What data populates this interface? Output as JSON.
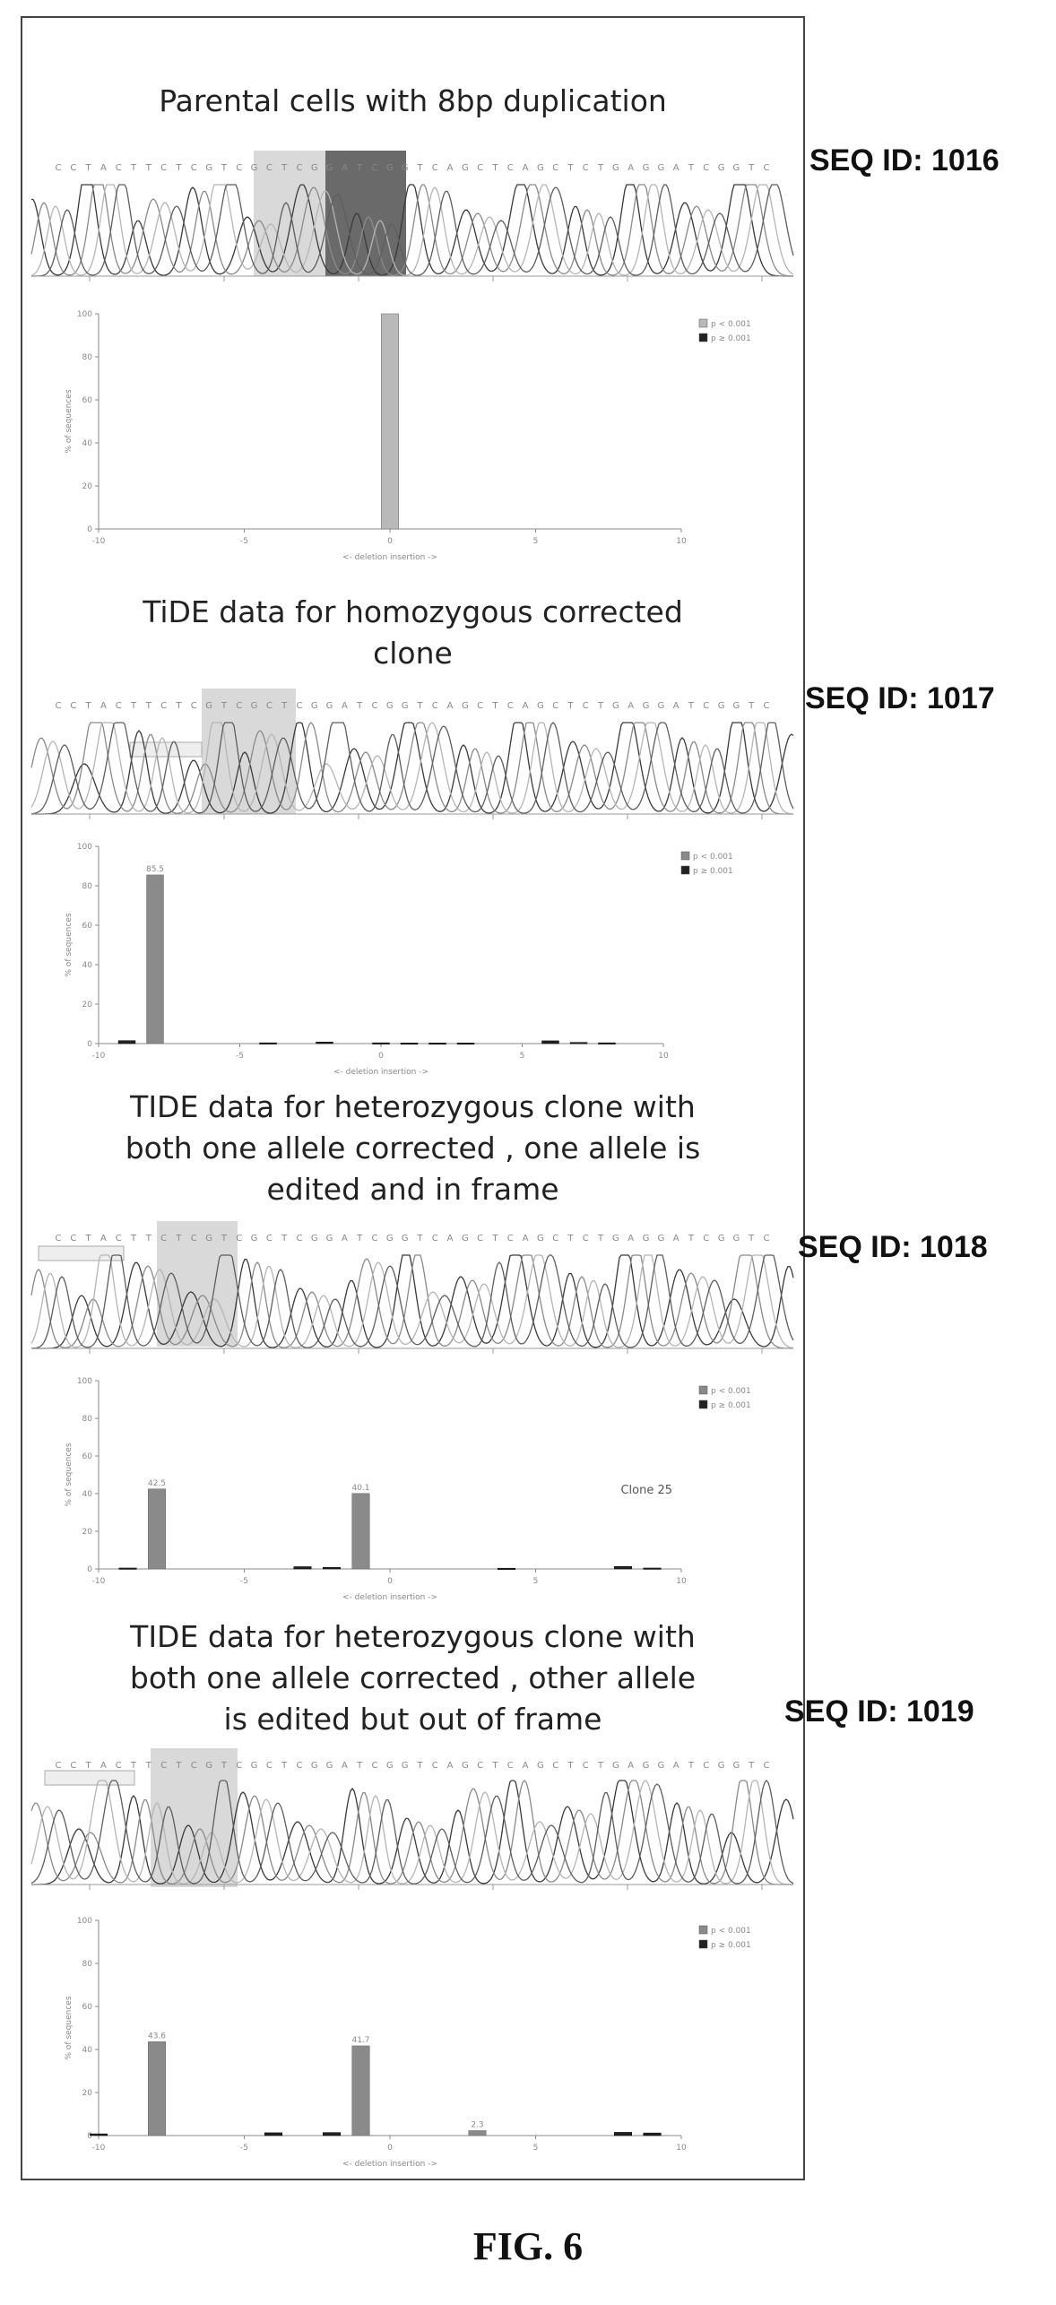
{
  "figure_label": "FIG. 6",
  "panels": [
    {
      "title": "Parental cells with 8bp duplication",
      "seq_id": "SEQ ID: 1016",
      "highlight": "light-and-dark"
    },
    {
      "title": "TiDE data for homozygous corrected\nclone",
      "seq_id": "SEQ ID: 1017",
      "highlight": "light"
    },
    {
      "title": "TIDE data for heterozygous clone with\nboth one allele corrected , one allele is\nedited and in frame",
      "seq_id": "SEQ ID: 1018",
      "highlight": "light"
    },
    {
      "title": "TIDE data for heterozygous clone with\nboth one allele corrected , other allele\nis edited but out of frame",
      "seq_id": "SEQ ID: 1019",
      "highlight": "light"
    }
  ],
  "chart_data": [
    {
      "type": "bar",
      "xlim": [
        -10,
        10
      ],
      "ylim": [
        0,
        100
      ],
      "xticks": [
        "-10",
        "-5",
        "0",
        "5",
        "10"
      ],
      "yticks": [
        "0",
        "20",
        "40",
        "60",
        "80",
        "100"
      ],
      "xlabel": "<- deletion insertion ->",
      "ylabel": "% of sequences",
      "legend": [
        "p < 0.001",
        "p ≥ 0.001"
      ],
      "legend_position": "top-right",
      "annotation": "",
      "series": [
        {
          "color": "#b9b9b9",
          "x": [
            0
          ],
          "values": [
            100
          ],
          "labels": [
            ""
          ]
        },
        {
          "color": "#222222",
          "x": [],
          "values": [],
          "labels": []
        }
      ]
    },
    {
      "type": "bar",
      "xlim": [
        -10,
        10
      ],
      "ylim": [
        0,
        100
      ],
      "xticks": [
        "-10",
        "-5",
        "0",
        "5",
        "10"
      ],
      "yticks": [
        "0",
        "20",
        "40",
        "60",
        "80",
        "100"
      ],
      "xlabel": "<- deletion insertion ->",
      "ylabel": "% of sequences",
      "legend": [
        "p < 0.001",
        "p ≥ 0.001"
      ],
      "legend_position": "top-right",
      "annotation": "",
      "series": [
        {
          "color": "#8a8a8a",
          "x": [
            -8
          ],
          "values": [
            85.5
          ],
          "labels": [
            "85.5"
          ]
        },
        {
          "color": "#222222",
          "x": [
            -9,
            -4,
            -2,
            0,
            1,
            2,
            3,
            6,
            7,
            8
          ],
          "values": [
            1.5,
            0.4,
            0.8,
            0.4,
            0.3,
            0.3,
            0.3,
            1.4,
            0.6,
            0.4
          ],
          "labels": [
            "",
            "",
            "",
            "",
            "",
            "",
            "",
            "",
            "",
            ""
          ]
        }
      ]
    },
    {
      "type": "bar",
      "xlim": [
        -10,
        10
      ],
      "ylim": [
        0,
        100
      ],
      "xticks": [
        "-10",
        "-5",
        "0",
        "5",
        "10"
      ],
      "yticks": [
        "0",
        "20",
        "40",
        "60",
        "80",
        "100"
      ],
      "xlabel": "<- deletion insertion ->",
      "ylabel": "% of sequences",
      "legend": [
        "p < 0.001",
        "p ≥ 0.001"
      ],
      "legend_position": "top-right",
      "annotation": "Clone 25",
      "series": [
        {
          "color": "#8a8a8a",
          "x": [
            -8,
            -1
          ],
          "values": [
            42.5,
            40.1
          ],
          "labels": [
            "42.5",
            "40.1"
          ]
        },
        {
          "color": "#222222",
          "x": [
            -9,
            -3,
            -2,
            4,
            8,
            9
          ],
          "values": [
            0.5,
            1.2,
            0.8,
            0.4,
            1.3,
            0.5
          ],
          "labels": [
            "",
            "",
            "",
            "",
            "",
            ""
          ]
        }
      ]
    },
    {
      "type": "bar",
      "xlim": [
        -10,
        10
      ],
      "ylim": [
        0,
        100
      ],
      "xticks": [
        "-10",
        "-5",
        "0",
        "5",
        "10"
      ],
      "yticks": [
        "0",
        "20",
        "40",
        "60",
        "80",
        "100"
      ],
      "xlabel": "<- deletion insertion ->",
      "ylabel": "% of sequences",
      "legend": [
        "p < 0.001",
        "p ≥ 0.001"
      ],
      "legend_position": "top-right",
      "annotation": "",
      "series": [
        {
          "color": "#8a8a8a",
          "x": [
            -8,
            -1,
            3
          ],
          "values": [
            43.6,
            41.7,
            2.3
          ],
          "labels": [
            "43.6",
            "41.7",
            "2.3"
          ]
        },
        {
          "color": "#222222",
          "x": [
            -10,
            -4,
            -2,
            8,
            9
          ],
          "values": [
            0.8,
            1.3,
            1.4,
            1.5,
            1.2
          ],
          "labels": [
            "",
            "",
            "",
            "",
            ""
          ]
        }
      ]
    }
  ]
}
